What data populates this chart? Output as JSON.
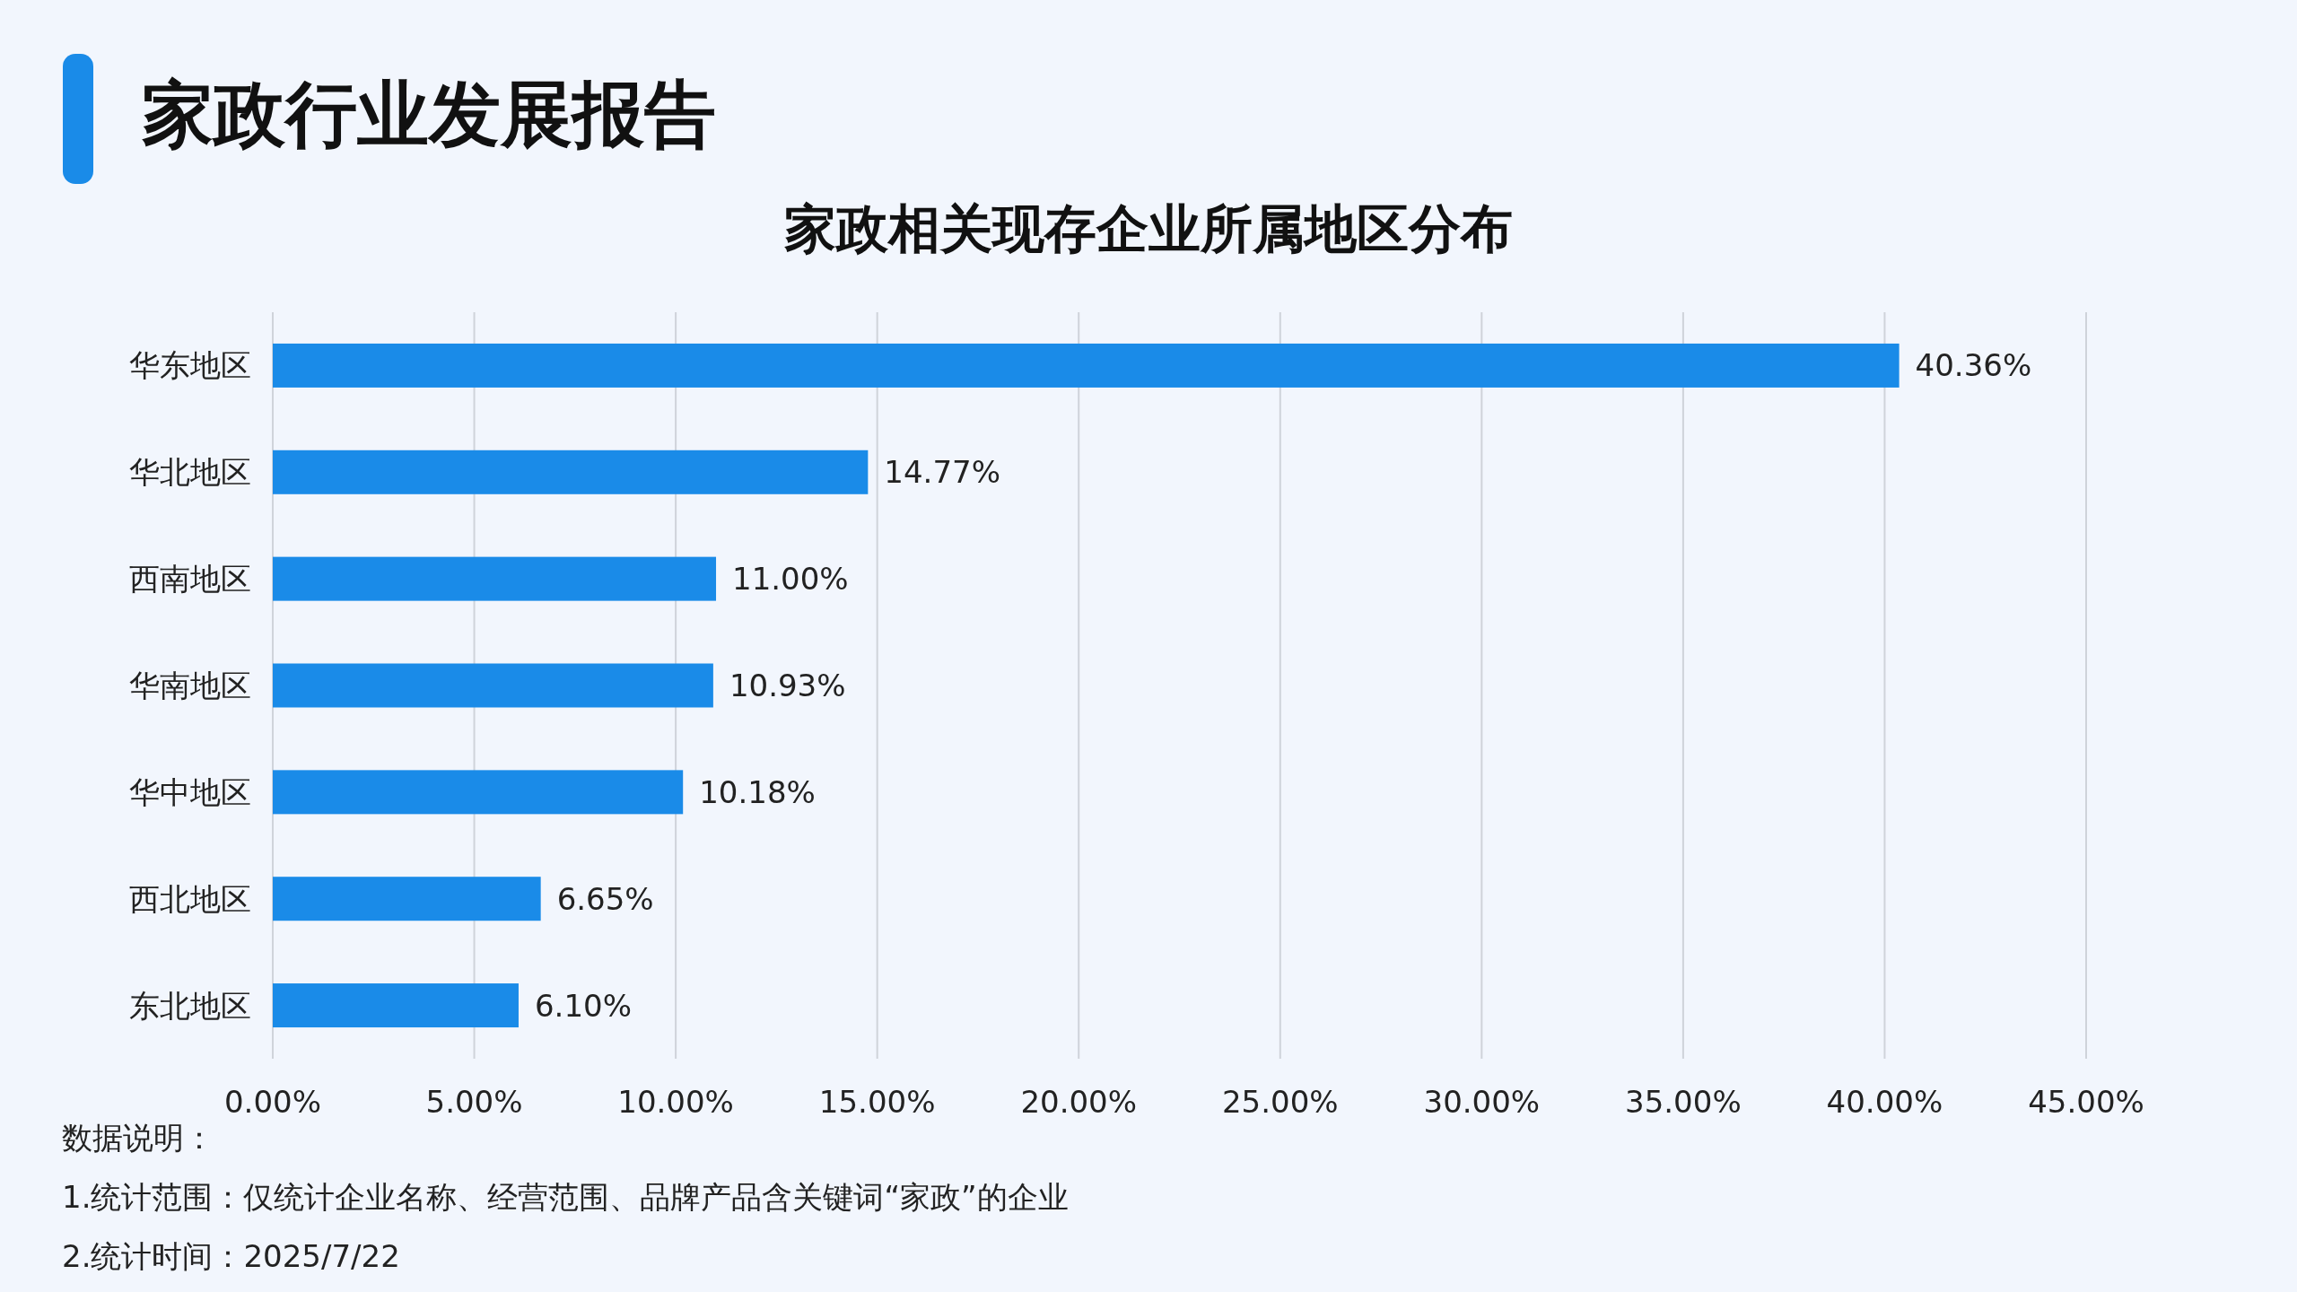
{
  "chart_data": {
    "type": "bar",
    "orientation": "horizontal",
    "title": "家政行业发展报告",
    "subtitle": "家政相关现存企业所属地区分布",
    "categories": [
      "华东地区",
      "华北地区",
      "西南地区",
      "华南地区",
      "华中地区",
      "西北地区",
      "东北地区"
    ],
    "values": [
      40.36,
      14.77,
      11.0,
      10.93,
      10.18,
      6.65,
      6.1
    ],
    "value_labels": [
      "40.36%",
      "14.77%",
      "11.00%",
      "10.93%",
      "10.18%",
      "6.65%",
      "6.10%"
    ],
    "color": "#1a8be8",
    "xlim": [
      0,
      45
    ],
    "xticks": [
      {
        "value": 0,
        "label": "0.00%"
      },
      {
        "value": 5,
        "label": "5.00%"
      },
      {
        "value": 10,
        "label": "10.00%"
      },
      {
        "value": 15,
        "label": "15.00%"
      },
      {
        "value": 20,
        "label": "20.00%"
      },
      {
        "value": 25,
        "label": "25.00%"
      },
      {
        "value": 30,
        "label": "30.00%"
      },
      {
        "value": 35,
        "label": "35.00%"
      },
      {
        "value": 40,
        "label": "40.00%"
      },
      {
        "value": 45,
        "label": "45.00%"
      }
    ],
    "grid": "x",
    "annotations": [
      "数据说明：",
      "1.统计范围：仅统计企业名称、经营范围、品牌产品含关键词“家政”的企业",
      "2.统计时间：2025/7/22"
    ]
  }
}
